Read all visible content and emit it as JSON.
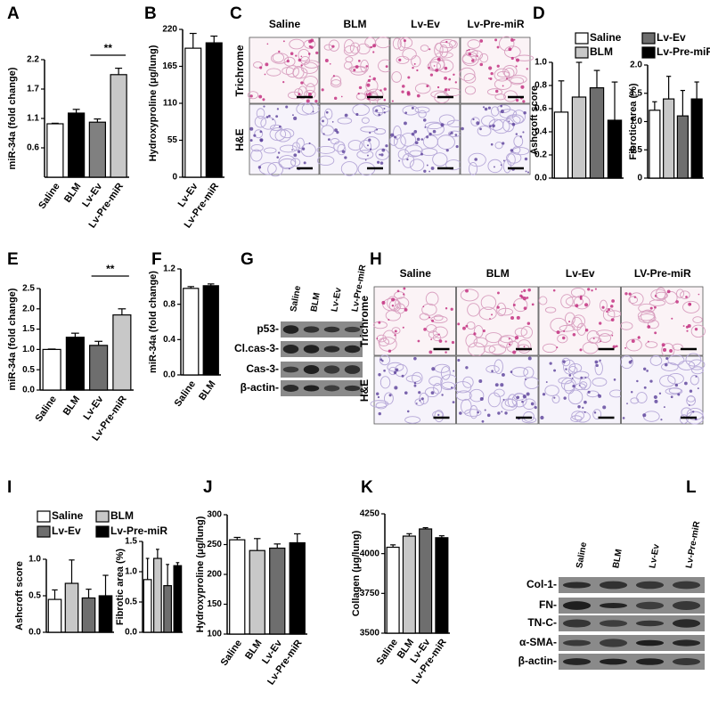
{
  "chart_data": [
    {
      "panel": "A",
      "type": "bar",
      "ylabel": "miR-34a (fold change)",
      "categories": [
        "Saline",
        "BLM",
        "Lv-Ev",
        "Lv-Pre-miR"
      ],
      "values": [
        1.0,
        1.2,
        1.03,
        1.92
      ],
      "errors": [
        0.01,
        0.07,
        0.06,
        0.12
      ],
      "colors": [
        "#ffffff",
        "#000000",
        "#808080",
        "#c8c8c8"
      ],
      "ylim": [
        0,
        2.2
      ],
      "yticks": [
        {
          "value": 0.55,
          "label": "0.6"
        },
        1.1,
        {
          "value": 1.65,
          "label": "1.7"
        },
        2.2
      ],
      "annotation": "**"
    },
    {
      "panel": "B",
      "type": "bar",
      "ylabel": "Hydroxyproline (μg/lung)",
      "categories": [
        "Lv-Ev",
        "Lv-Pre-miR"
      ],
      "values": [
        192,
        200
      ],
      "errors": [
        22,
        10
      ],
      "colors": [
        "#ffffff",
        "#000000"
      ],
      "ylim": [
        0,
        220
      ],
      "yticks": [
        0,
        55,
        110,
        165,
        220
      ]
    },
    {
      "panel": "D",
      "type": "bar",
      "ylabel": "Ashcroft score",
      "series": [
        {
          "name": "Saline",
          "color": "#ffffff",
          "values": [
            0.57
          ],
          "errors": [
            0.27
          ]
        },
        {
          "name": "BLM",
          "color": "#c8c8c8",
          "values": [
            0.7
          ],
          "errors": [
            0.3
          ]
        },
        {
          "name": "Lv-Ev",
          "color": "#6e6e6e",
          "values": [
            0.78
          ],
          "errors": [
            0.15
          ]
        },
        {
          "name": "Lv-Pre-miR",
          "color": "#000000",
          "values": [
            0.5
          ],
          "errors": [
            0.33
          ]
        }
      ],
      "ylim": [
        0,
        1.0
      ],
      "yticks": [
        {
          "value": 0,
          "label": "0.0"
        },
        0.2,
        0.4,
        0.6,
        0.8,
        {
          "value": 1,
          "label": "1.0"
        }
      ]
    },
    {
      "type": "bar",
      "ylabel": "Fibrotic area (%)",
      "values": [
        1.2,
        1.4,
        1.1,
        1.4
      ],
      "errors": [
        0.15,
        0.4,
        0.45,
        0.3
      ],
      "colors": [
        "#ffffff",
        "#c8c8c8",
        "#6e6e6e",
        "#000000"
      ],
      "ylim": [
        0,
        2.0
      ],
      "yticks": [
        0,
        0.5,
        {
          "value": 1,
          "label": "1.0"
        },
        1.5,
        {
          "value": 2,
          "label": "2.0"
        }
      ]
    },
    {
      "panel": "E",
      "type": "bar",
      "ylabel": "miR-34a (fold change)",
      "categories": [
        "Saline",
        "BLM",
        "Lv-Ev",
        "Lv-Pre-miR"
      ],
      "values": [
        1.0,
        1.3,
        1.1,
        1.85
      ],
      "errors": [
        0.01,
        0.1,
        0.1,
        0.15
      ],
      "colors": [
        "#ffffff",
        "#000000",
        "#6e6e6e",
        "#c8c8c8"
      ],
      "ylim": [
        0,
        2.5
      ],
      "yticks": [
        {
          "value": 0,
          "label": "0.0"
        },
        0.5,
        {
          "value": 1,
          "label": "1.0"
        },
        1.5,
        {
          "value": 2,
          "label": "2.0"
        },
        2.5
      ],
      "annotation": "**"
    },
    {
      "panel": "F",
      "type": "bar",
      "ylabel": "miR-34a (fold change)",
      "categories": [
        "Saline",
        "BLM"
      ],
      "values": [
        0.98,
        1.01
      ],
      "errors": [
        0.02,
        0.02
      ],
      "colors": [
        "#ffffff",
        "#000000"
      ],
      "ylim": [
        0,
        1.2
      ],
      "yticks": [
        {
          "value": 0,
          "label": "0.0"
        },
        0.4,
        0.8,
        1.2
      ]
    },
    {
      "panel": "I",
      "type": "bar",
      "ylabel": "Ashcroft score",
      "series": [
        {
          "name": "Saline",
          "color": "#ffffff",
          "values": [
            0.45
          ],
          "errors": [
            0.13
          ]
        },
        {
          "name": "BLM",
          "color": "#c8c8c8",
          "values": [
            0.67
          ],
          "errors": [
            0.32
          ]
        },
        {
          "name": "Lv-Ev",
          "color": "#6e6e6e",
          "values": [
            0.47
          ],
          "errors": [
            0.12
          ]
        },
        {
          "name": "Lv-Pre-miR",
          "color": "#000000",
          "values": [
            0.5
          ],
          "errors": [
            0.28
          ]
        }
      ],
      "ylim": [
        0,
        1.0
      ],
      "yticks": [
        {
          "value": 0,
          "label": "0.0"
        },
        0.5,
        {
          "value": 1,
          "label": "1.0"
        }
      ]
    },
    {
      "type": "bar",
      "ylabel": "Fibrotic area (%)",
      "values": [
        0.87,
        1.22,
        0.77,
        1.1
      ],
      "errors": [
        0.35,
        0.15,
        0.35,
        0.05
      ],
      "colors": [
        "#ffffff",
        "#c8c8c8",
        "#6e6e6e",
        "#000000"
      ],
      "ylim": [
        0,
        1.5
      ],
      "yticks": [
        {
          "value": 0,
          "label": "0.0"
        },
        0.5,
        {
          "value": 1,
          "label": "1.0"
        },
        1.5
      ]
    },
    {
      "panel": "J",
      "type": "bar",
      "ylabel": "Hydroxyproline (μg/lung)",
      "categories": [
        "Saline",
        "BLM",
        "Lv-Ev",
        "Lv-Pre-miR"
      ],
      "values": [
        258,
        240,
        244,
        253
      ],
      "errors": [
        4,
        20,
        7,
        15
      ],
      "colors": [
        "#ffffff",
        "#c8c8c8",
        "#6e6e6e",
        "#000000"
      ],
      "ylim": [
        100,
        300
      ],
      "yticks": [
        100,
        150,
        200,
        250,
        300
      ]
    },
    {
      "panel": "K",
      "type": "bar",
      "ylabel": "Collagen (μg/lung)",
      "categories": [
        "Saline",
        "BLM",
        "Lv-Ev",
        "Lv-Pre-miR"
      ],
      "values": [
        4040,
        4110,
        4155,
        4100
      ],
      "errors": [
        15,
        15,
        8,
        12
      ],
      "colors": [
        "#ffffff",
        "#c8c8c8",
        "#6e6e6e",
        "#000000"
      ],
      "ylim": [
        3500,
        4250
      ],
      "yticks": [
        3500,
        3750,
        4000,
        4250
      ]
    }
  ],
  "images": [
    {
      "panel": "C",
      "kind": "histology",
      "columns": [
        "Saline",
        "BLM",
        "Lv-Ev",
        "Lv-Pre-miR"
      ],
      "rows": [
        "Trichrome",
        "H&E"
      ]
    },
    {
      "panel": "G",
      "kind": "blot",
      "columns": [
        "Saline",
        "BLM",
        "Lv-Ev",
        "Lv-Pre-miR"
      ],
      "rows": [
        "p53-",
        "Cl.cas-3-",
        "Cas-3-",
        "β-actin-"
      ]
    },
    {
      "panel": "H",
      "kind": "histology",
      "columns": [
        "Saline",
        "BLM",
        "Lv-Ev",
        "LV-Pre-miR"
      ],
      "rows": [
        "Trichrome",
        "H&E"
      ]
    },
    {
      "panel": "L",
      "kind": "blot",
      "columns": [
        "Saline",
        "BLM",
        "Lv-Ev",
        "Lv-Pre-miR"
      ],
      "rows": [
        "Col-1-",
        "FN-",
        "TN-C-",
        "α-SMA-",
        "β-actin-"
      ]
    }
  ]
}
